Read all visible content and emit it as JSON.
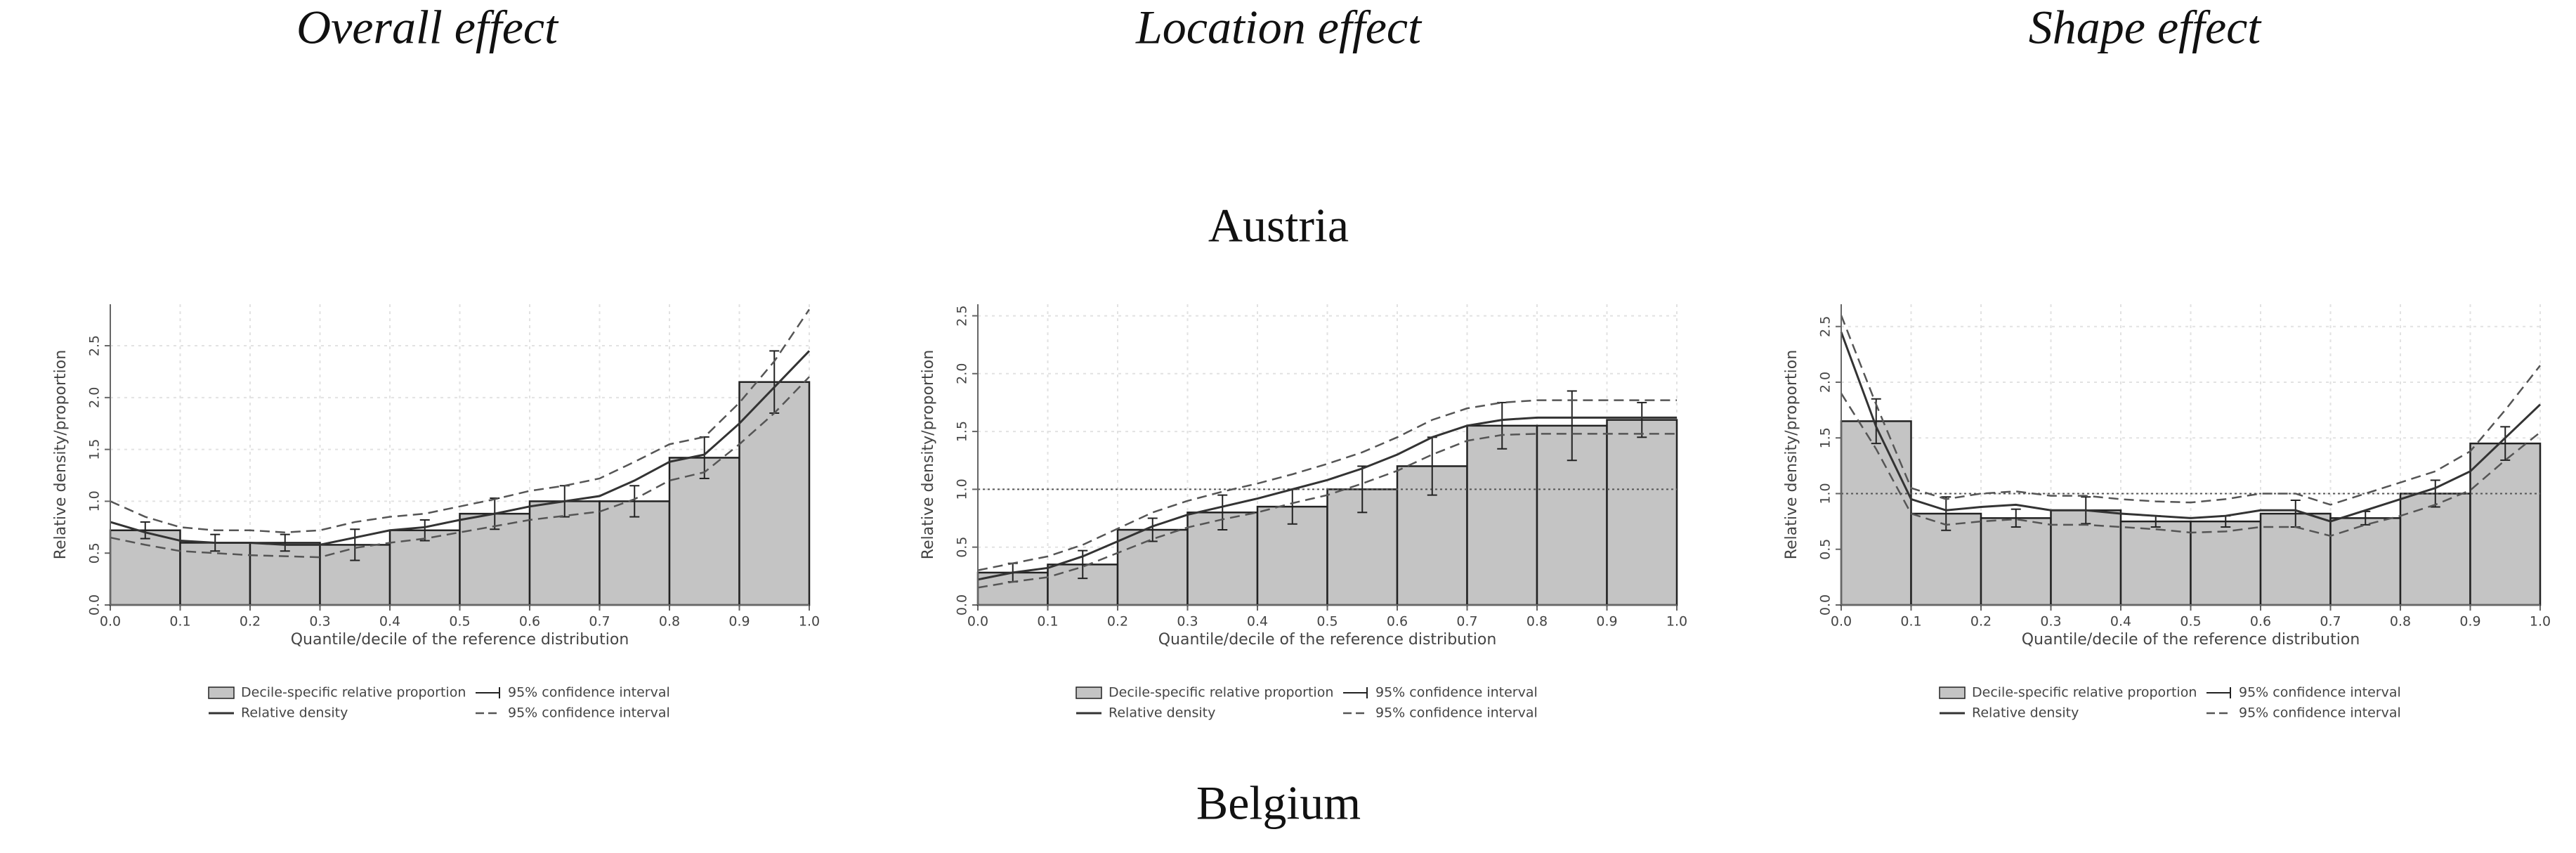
{
  "column_titles": [
    "Overall effect",
    "Location effect",
    "Shape effect"
  ],
  "row_labels": [
    "Austria",
    "Belgium"
  ],
  "chart_data": [
    {
      "type": "bar",
      "xlabel": "Quantile/decile of the reference distribution",
      "ylabel": "Relative density/proportion",
      "bins": [
        0,
        0.1,
        0.2,
        0.3,
        0.4,
        0.5,
        0.6,
        0.7,
        0.8,
        0.9,
        1
      ],
      "bars": {
        "name": "Decile-specific relative proportion",
        "color": "#c4c4c4",
        "error_name": "95% confidence interval",
        "values": [
          0.72,
          0.6,
          0.6,
          0.58,
          0.72,
          0.88,
          1.0,
          1.0,
          1.42,
          2.15
        ],
        "errors": [
          0.08,
          0.08,
          0.08,
          0.15,
          0.1,
          0.15,
          0.15,
          0.15,
          0.2,
          0.3
        ]
      },
      "x": [
        0,
        0.05,
        0.1,
        0.15,
        0.2,
        0.25,
        0.3,
        0.35,
        0.4,
        0.45,
        0.5,
        0.55,
        0.6,
        0.65,
        0.7,
        0.75,
        0.8,
        0.85,
        0.9,
        0.95,
        1
      ],
      "series": [
        {
          "name": "Relative density",
          "color": "#333333",
          "values": [
            0.8,
            0.7,
            0.62,
            0.6,
            0.6,
            0.58,
            0.58,
            0.65,
            0.72,
            0.75,
            0.82,
            0.88,
            0.95,
            1.0,
            1.05,
            1.2,
            1.38,
            1.45,
            1.75,
            2.1,
            2.45
          ]
        }
      ],
      "band": {
        "name": "95% confidence interval",
        "color": "#555555",
        "upper": [
          1.0,
          0.85,
          0.75,
          0.72,
          0.72,
          0.7,
          0.72,
          0.8,
          0.85,
          0.88,
          0.95,
          1.02,
          1.1,
          1.15,
          1.22,
          1.38,
          1.55,
          1.62,
          1.95,
          2.35,
          2.85
        ],
        "lower": [
          0.65,
          0.58,
          0.52,
          0.5,
          0.48,
          0.47,
          0.46,
          0.55,
          0.6,
          0.64,
          0.7,
          0.76,
          0.82,
          0.86,
          0.9,
          1.02,
          1.2,
          1.28,
          1.55,
          1.85,
          2.2
        ]
      },
      "xlim": [
        0,
        1
      ],
      "ylim": [
        0,
        2.9
      ],
      "xticks": [
        {
          "value": 0,
          "label": "0.0"
        },
        0.1,
        0.2,
        0.3,
        0.4,
        0.5,
        0.6,
        0.7,
        0.8,
        0.9,
        {
          "value": 1,
          "label": "1.0"
        }
      ],
      "yticks": [
        {
          "value": 0,
          "label": "0.0"
        },
        0.5,
        {
          "value": 1,
          "label": "1.0"
        },
        1.5,
        {
          "value": 2,
          "label": "2.0"
        },
        2.5
      ],
      "grid": true
    },
    {
      "type": "bar",
      "xlabel": "Quantile/decile of the reference distribution",
      "ylabel": "Relative density/proportion",
      "bins": [
        0,
        0.1,
        0.2,
        0.3,
        0.4,
        0.5,
        0.6,
        0.7,
        0.8,
        0.9,
        1
      ],
      "bars": {
        "name": "Decile-specific relative proportion",
        "color": "#c4c4c4",
        "error_name": "95% confidence interval",
        "values": [
          0.28,
          0.35,
          0.65,
          0.8,
          0.85,
          1.0,
          1.2,
          1.55,
          1.55,
          1.6
        ],
        "errors": [
          0.08,
          0.12,
          0.1,
          0.15,
          0.15,
          0.2,
          0.25,
          0.2,
          0.3,
          0.15
        ]
      },
      "x": [
        0,
        0.05,
        0.1,
        0.15,
        0.2,
        0.25,
        0.3,
        0.35,
        0.4,
        0.45,
        0.5,
        0.55,
        0.6,
        0.65,
        0.7,
        0.75,
        0.8,
        0.85,
        0.9,
        0.95,
        1
      ],
      "series": [
        {
          "name": "Relative density",
          "color": "#333333",
          "values": [
            0.22,
            0.28,
            0.32,
            0.42,
            0.55,
            0.68,
            0.78,
            0.85,
            0.92,
            1.0,
            1.08,
            1.18,
            1.3,
            1.45,
            1.55,
            1.6,
            1.62,
            1.62,
            1.62,
            1.62,
            1.62
          ]
        }
      ],
      "band": {
        "name": "95% confidence interval",
        "color": "#555555",
        "upper": [
          0.3,
          0.36,
          0.42,
          0.52,
          0.66,
          0.8,
          0.9,
          0.98,
          1.05,
          1.13,
          1.22,
          1.32,
          1.45,
          1.6,
          1.7,
          1.75,
          1.77,
          1.77,
          1.77,
          1.77,
          1.77
        ],
        "lower": [
          0.15,
          0.2,
          0.24,
          0.33,
          0.45,
          0.57,
          0.67,
          0.74,
          0.8,
          0.88,
          0.95,
          1.05,
          1.16,
          1.3,
          1.42,
          1.47,
          1.48,
          1.48,
          1.48,
          1.48,
          1.48
        ]
      },
      "xlim": [
        0,
        1
      ],
      "ylim": [
        0,
        2.6
      ],
      "xticks": [
        {
          "value": 0,
          "label": "0.0"
        },
        0.1,
        0.2,
        0.3,
        0.4,
        0.5,
        0.6,
        0.7,
        0.8,
        0.9,
        {
          "value": 1,
          "label": "1.0"
        }
      ],
      "yticks": [
        {
          "value": 0,
          "label": "0.0"
        },
        0.5,
        {
          "value": 1,
          "label": "1.0"
        },
        1.5,
        {
          "value": 2,
          "label": "2.0"
        },
        2.5
      ],
      "grid": true,
      "reference_line": 1
    },
    {
      "type": "bar",
      "xlabel": "Quantile/decile of the reference distribution",
      "ylabel": "Relative density/proportion",
      "bins": [
        0,
        0.1,
        0.2,
        0.3,
        0.4,
        0.5,
        0.6,
        0.7,
        0.8,
        0.9,
        1
      ],
      "bars": {
        "name": "Decile-specific relative proportion",
        "color": "#c4c4c4",
        "error_name": "95% confidence interval",
        "values": [
          1.65,
          0.82,
          0.78,
          0.85,
          0.75,
          0.75,
          0.82,
          0.78,
          1.0,
          1.45
        ],
        "errors": [
          0.2,
          0.15,
          0.08,
          0.12,
          0.05,
          0.05,
          0.12,
          0.06,
          0.12,
          0.15
        ]
      },
      "x": [
        0,
        0.05,
        0.1,
        0.15,
        0.2,
        0.25,
        0.3,
        0.35,
        0.4,
        0.45,
        0.5,
        0.55,
        0.6,
        0.65,
        0.7,
        0.75,
        0.8,
        0.85,
        0.9,
        0.95,
        1
      ],
      "series": [
        {
          "name": "Relative density",
          "color": "#333333",
          "values": [
            2.45,
            1.6,
            0.95,
            0.85,
            0.88,
            0.9,
            0.85,
            0.85,
            0.82,
            0.8,
            0.78,
            0.8,
            0.85,
            0.85,
            0.75,
            0.85,
            0.95,
            1.05,
            1.2,
            1.5,
            1.8
          ]
        }
      ],
      "band": {
        "name": "95% confidence interval",
        "color": "#555555",
        "upper": [
          2.6,
          1.8,
          1.05,
          0.95,
          1.0,
          1.02,
          0.98,
          0.98,
          0.95,
          0.93,
          0.92,
          0.95,
          1.0,
          1.0,
          0.9,
          1.0,
          1.1,
          1.2,
          1.38,
          1.75,
          2.15
        ],
        "lower": [
          1.9,
          1.4,
          0.82,
          0.72,
          0.75,
          0.77,
          0.72,
          0.72,
          0.7,
          0.68,
          0.65,
          0.66,
          0.7,
          0.7,
          0.62,
          0.72,
          0.8,
          0.9,
          1.03,
          1.3,
          1.55
        ]
      },
      "xlim": [
        0,
        1
      ],
      "ylim": [
        0,
        2.7
      ],
      "xticks": [
        {
          "value": 0,
          "label": "0.0"
        },
        0.1,
        0.2,
        0.3,
        0.4,
        0.5,
        0.6,
        0.7,
        0.8,
        0.9,
        {
          "value": 1,
          "label": "1.0"
        }
      ],
      "yticks": [
        {
          "value": 0,
          "label": "0.0"
        },
        0.5,
        {
          "value": 1,
          "label": "1.0"
        },
        1.5,
        {
          "value": 2,
          "label": "2.0"
        },
        2.5
      ],
      "grid": true,
      "reference_line": 1
    }
  ]
}
